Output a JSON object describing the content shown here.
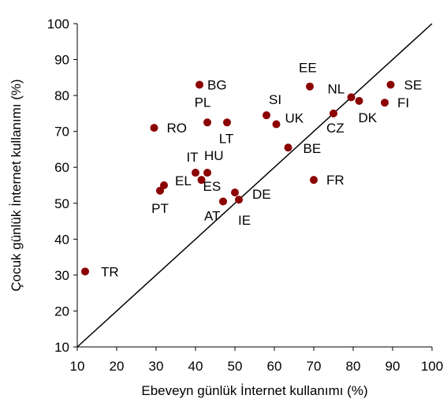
{
  "chart_data": {
    "type": "scatter",
    "title": "",
    "xlabel": "Ebeveyn günlük İnternet kullanımı (%)",
    "ylabel": "Çocuk günlük İnternet kullanımı (%)",
    "xlim": [
      10,
      100
    ],
    "ylim": [
      10,
      100
    ],
    "xticks": [
      10,
      20,
      30,
      40,
      50,
      60,
      70,
      80,
      90,
      100
    ],
    "yticks": [
      10,
      20,
      30,
      40,
      50,
      60,
      70,
      80,
      90,
      100
    ],
    "grid": false,
    "marker_color": "#8b0000",
    "reference_line": "y = x",
    "points": [
      {
        "label": "TR",
        "x": 12,
        "y": 31
      },
      {
        "label": "PT",
        "x": 31,
        "y": 53.5
      },
      {
        "label": "EL",
        "x": 32,
        "y": 55
      },
      {
        "label": "RO",
        "x": 29.5,
        "y": 71
      },
      {
        "label": "BG",
        "x": 41,
        "y": 83
      },
      {
        "label": "PL",
        "x": 43,
        "y": 72.5
      },
      {
        "label": "LT",
        "x": 48,
        "y": 72.5
      },
      {
        "label": "IT",
        "x": 40,
        "y": 58.5
      },
      {
        "label": "HU",
        "x": 43,
        "y": 58.5
      },
      {
        "label": "ES",
        "x": 41.5,
        "y": 56.5
      },
      {
        "label": "AT",
        "x": 47,
        "y": 50.5
      },
      {
        "label": "DE",
        "x": 50,
        "y": 53
      },
      {
        "label": "IE",
        "x": 51,
        "y": 51
      },
      {
        "label": "SI",
        "x": 58,
        "y": 74.5
      },
      {
        "label": "UK",
        "x": 60.5,
        "y": 72
      },
      {
        "label": "BE",
        "x": 63.5,
        "y": 65.5
      },
      {
        "label": "EE",
        "x": 69,
        "y": 82.5
      },
      {
        "label": "FR",
        "x": 70,
        "y": 56.5
      },
      {
        "label": "CZ",
        "x": 75,
        "y": 75
      },
      {
        "label": "NL",
        "x": 79.5,
        "y": 79.5
      },
      {
        "label": "DK",
        "x": 81.5,
        "y": 78.5
      },
      {
        "label": "FI",
        "x": 88,
        "y": 78
      },
      {
        "label": "SE",
        "x": 89.5,
        "y": 83
      }
    ]
  }
}
